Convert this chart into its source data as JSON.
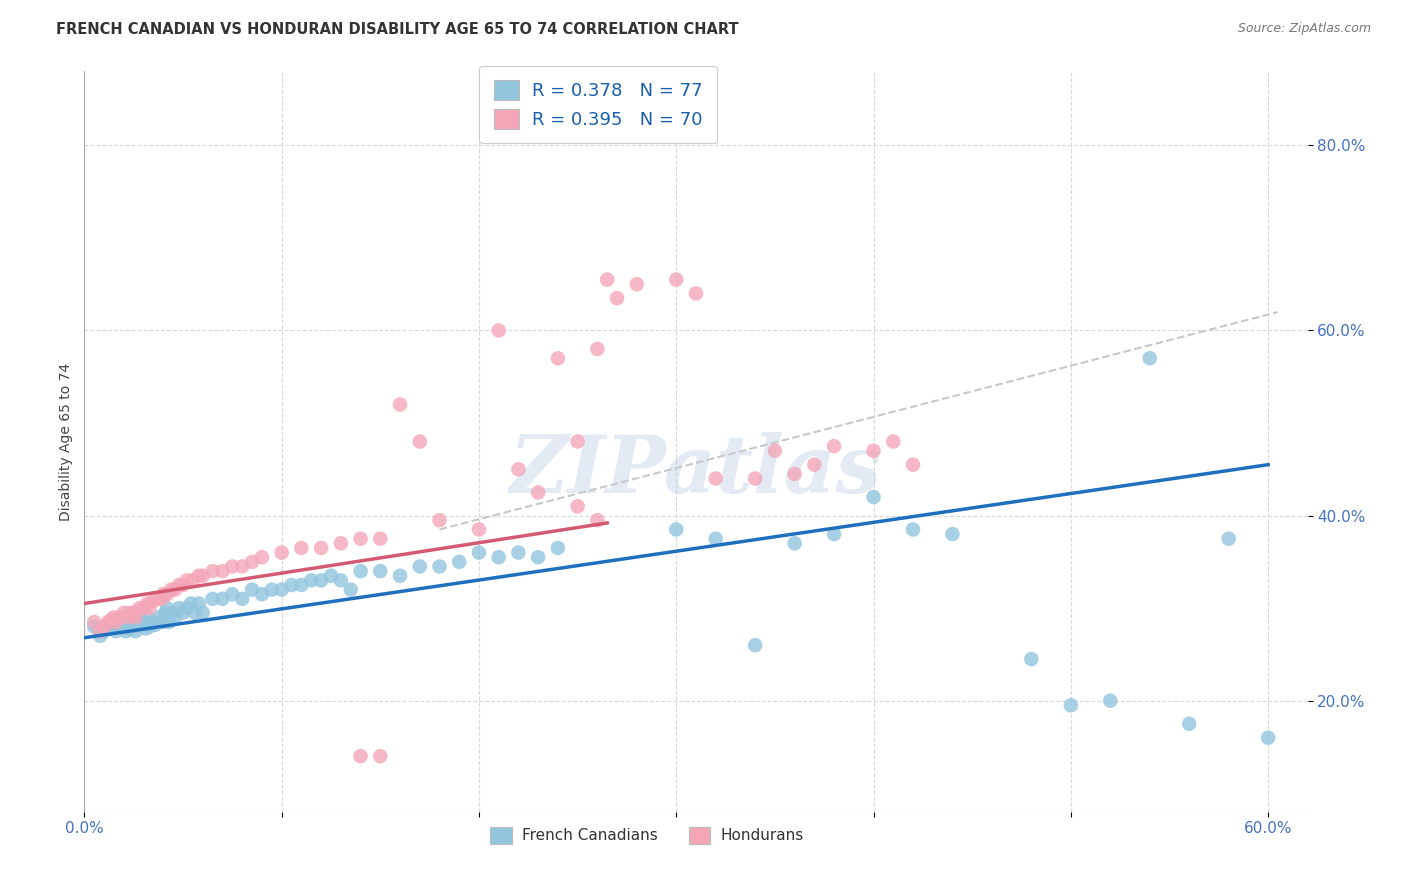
{
  "title": "FRENCH CANADIAN VS HONDURAN DISABILITY AGE 65 TO 74 CORRELATION CHART",
  "source": "Source: ZipAtlas.com",
  "ylabel": "Disability Age 65 to 74",
  "xlim": [
    0.0,
    0.62
  ],
  "ylim": [
    0.08,
    0.88
  ],
  "xtick_vals": [
    0.0,
    0.1,
    0.2,
    0.3,
    0.4,
    0.5,
    0.6
  ],
  "ytick_vals": [
    0.2,
    0.4,
    0.6,
    0.8
  ],
  "legend_label1": "French Canadians",
  "legend_label2": "Hondurans",
  "blue_color": "#92c5de",
  "pink_color": "#f4a6b8",
  "blue_line_color": "#1f6fbf",
  "pink_line_color": "#d45a72",
  "dashed_line_color": "#c8c8c8",
  "background_color": "#ffffff",
  "grid_color": "#d8d8d8",
  "title_color": "#333333",
  "tick_color_blue": "#4472C4",
  "watermark": "ZIPatlas",
  "blue_line_x0": 0.0,
  "blue_line_y0": 0.268,
  "blue_line_x1": 0.6,
  "blue_line_y1": 0.455,
  "pink_line_x0": 0.0,
  "pink_line_y0": 0.305,
  "pink_line_x1": 0.265,
  "pink_line_y1": 0.392,
  "dash_line_x0": 0.18,
  "dash_line_y0": 0.385,
  "dash_line_x1": 0.605,
  "dash_line_y1": 0.62,
  "blue_x": [
    0.005,
    0.008,
    0.01,
    0.012,
    0.013,
    0.015,
    0.016,
    0.018,
    0.02,
    0.021,
    0.022,
    0.023,
    0.024,
    0.025,
    0.026,
    0.028,
    0.03,
    0.031,
    0.032,
    0.033,
    0.035,
    0.036,
    0.038,
    0.04,
    0.041,
    0.042,
    0.043,
    0.045,
    0.046,
    0.048,
    0.05,
    0.052,
    0.054,
    0.056,
    0.058,
    0.06,
    0.065,
    0.07,
    0.075,
    0.08,
    0.085,
    0.09,
    0.095,
    0.1,
    0.105,
    0.11,
    0.115,
    0.12,
    0.125,
    0.13,
    0.135,
    0.14,
    0.15,
    0.16,
    0.17,
    0.18,
    0.19,
    0.2,
    0.21,
    0.22,
    0.23,
    0.24,
    0.3,
    0.32,
    0.34,
    0.36,
    0.38,
    0.4,
    0.42,
    0.44,
    0.48,
    0.5,
    0.52,
    0.54,
    0.56,
    0.58,
    0.6
  ],
  "blue_y": [
    0.28,
    0.27,
    0.275,
    0.282,
    0.278,
    0.285,
    0.275,
    0.28,
    0.282,
    0.275,
    0.278,
    0.285,
    0.29,
    0.28,
    0.275,
    0.285,
    0.285,
    0.278,
    0.29,
    0.28,
    0.285,
    0.282,
    0.29,
    0.285,
    0.295,
    0.3,
    0.285,
    0.295,
    0.29,
    0.3,
    0.295,
    0.3,
    0.305,
    0.295,
    0.305,
    0.295,
    0.31,
    0.31,
    0.315,
    0.31,
    0.32,
    0.315,
    0.32,
    0.32,
    0.325,
    0.325,
    0.33,
    0.33,
    0.335,
    0.33,
    0.32,
    0.34,
    0.34,
    0.335,
    0.345,
    0.345,
    0.35,
    0.36,
    0.355,
    0.36,
    0.355,
    0.365,
    0.385,
    0.375,
    0.26,
    0.37,
    0.38,
    0.42,
    0.385,
    0.38,
    0.245,
    0.195,
    0.2,
    0.57,
    0.175,
    0.375,
    0.16
  ],
  "pink_x": [
    0.005,
    0.008,
    0.01,
    0.012,
    0.014,
    0.015,
    0.016,
    0.018,
    0.02,
    0.022,
    0.023,
    0.025,
    0.026,
    0.028,
    0.03,
    0.032,
    0.033,
    0.035,
    0.037,
    0.039,
    0.04,
    0.042,
    0.044,
    0.046,
    0.048,
    0.05,
    0.052,
    0.055,
    0.058,
    0.06,
    0.065,
    0.07,
    0.075,
    0.08,
    0.085,
    0.09,
    0.1,
    0.11,
    0.12,
    0.13,
    0.14,
    0.15,
    0.16,
    0.17,
    0.18,
    0.2,
    0.21,
    0.22,
    0.23,
    0.24,
    0.25,
    0.26,
    0.14,
    0.15,
    0.25,
    0.26,
    0.265,
    0.27,
    0.28,
    0.3,
    0.31,
    0.32,
    0.34,
    0.35,
    0.36,
    0.37,
    0.38,
    0.4,
    0.41,
    0.42
  ],
  "pink_y": [
    0.285,
    0.275,
    0.28,
    0.285,
    0.288,
    0.29,
    0.285,
    0.29,
    0.295,
    0.29,
    0.295,
    0.295,
    0.29,
    0.3,
    0.3,
    0.305,
    0.3,
    0.308,
    0.31,
    0.31,
    0.315,
    0.315,
    0.32,
    0.32,
    0.325,
    0.325,
    0.33,
    0.33,
    0.335,
    0.335,
    0.34,
    0.34,
    0.345,
    0.345,
    0.35,
    0.355,
    0.36,
    0.365,
    0.365,
    0.37,
    0.375,
    0.375,
    0.52,
    0.48,
    0.395,
    0.385,
    0.6,
    0.45,
    0.425,
    0.57,
    0.41,
    0.395,
    0.14,
    0.14,
    0.48,
    0.58,
    0.655,
    0.635,
    0.65,
    0.655,
    0.64,
    0.44,
    0.44,
    0.47,
    0.445,
    0.455,
    0.475,
    0.47,
    0.48,
    0.455
  ]
}
